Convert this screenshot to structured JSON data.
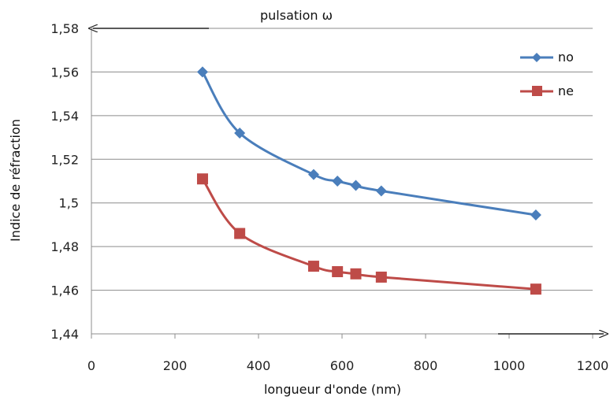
{
  "chart_data": {
    "type": "line",
    "title": "",
    "xlabel": "longueur d'onde (nm)",
    "ylabel": "Indice de réfraction",
    "top_annotation": "pulsation ω",
    "xlim": [
      0,
      1200
    ],
    "ylim": [
      1.44,
      1.58
    ],
    "x_ticks": [
      "0",
      "200",
      "400",
      "600",
      "800",
      "1000",
      "1200"
    ],
    "x_tick_values": [
      0,
      200,
      400,
      600,
      800,
      1000,
      1200
    ],
    "y_ticks": [
      "1,44",
      "1,46",
      "1,48",
      "1,5",
      "1,52",
      "1,54",
      "1,56",
      "1,58"
    ],
    "y_tick_values": [
      1.44,
      1.46,
      1.48,
      1.5,
      1.52,
      1.54,
      1.56,
      1.58
    ],
    "grid": "horizontal",
    "legend_position": "top-right",
    "series": [
      {
        "name": "no",
        "color": "#4a7ebb",
        "marker": "diamond",
        "x": [
          266,
          355,
          532,
          589,
          633,
          694,
          1064
        ],
        "y": [
          1.56,
          1.532,
          1.513,
          1.51,
          1.508,
          1.5055,
          1.4945
        ]
      },
      {
        "name": "ne",
        "color": "#be4b48",
        "marker": "square",
        "x": [
          266,
          355,
          532,
          589,
          633,
          694,
          1064
        ],
        "y": [
          1.511,
          1.486,
          1.471,
          1.4685,
          1.4675,
          1.466,
          1.4605
        ]
      }
    ]
  }
}
